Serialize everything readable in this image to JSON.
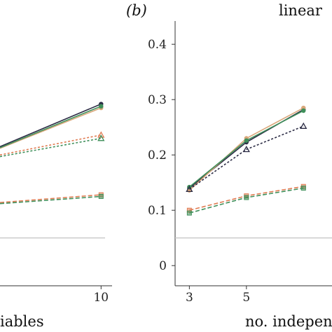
{
  "colors": {
    "dark": "#2b2b44",
    "green": "#3f8f5a",
    "orange": "#e07b52",
    "tan": "#d9a77a",
    "axis": "#333333",
    "reference": "#c8c8c8"
  },
  "chart_data": [
    {
      "type": "line",
      "panel_label": "",
      "title": "",
      "xlabel": "iables",
      "ylabel": "",
      "x_ticks": [
        10
      ],
      "x_tick_labels": [
        "10"
      ],
      "xlim": [
        2.4,
        10.3
      ],
      "ylim": [
        -0.02,
        0.48
      ],
      "reference_line": 0.05,
      "grid": false,
      "series": [
        {
          "group": "solid-top",
          "color": "dark",
          "marker": "circle",
          "dash": "solid",
          "x": [
            2.4,
            10
          ],
          "y": [
            0.215,
            0.292
          ]
        },
        {
          "group": "solid-top",
          "color": "tan",
          "marker": "circle",
          "dash": "solid",
          "x": [
            2.4,
            10
          ],
          "y": [
            0.212,
            0.285
          ]
        },
        {
          "group": "solid-top",
          "color": "green",
          "marker": "circle",
          "dash": "solid",
          "x": [
            2.4,
            10
          ],
          "y": [
            0.213,
            0.288
          ]
        },
        {
          "group": "dotted-mid",
          "color": "orange",
          "marker": "triangle",
          "dash": "dotted",
          "x": [
            2.4,
            10
          ],
          "y": [
            0.2,
            0.236
          ]
        },
        {
          "group": "dotted-mid",
          "color": "green",
          "marker": "triangle",
          "dash": "dotted",
          "x": [
            2.4,
            10
          ],
          "y": [
            0.197,
            0.23
          ]
        },
        {
          "group": "dashed-low",
          "color": "orange",
          "marker": "square",
          "dash": "dashed",
          "x": [
            2.4,
            10
          ],
          "y": [
            0.114,
            0.128
          ]
        },
        {
          "group": "dashed-low",
          "color": "green",
          "marker": "square",
          "dash": "dashed",
          "x": [
            2.4,
            10
          ],
          "y": [
            0.112,
            0.125
          ]
        }
      ]
    },
    {
      "type": "line",
      "panel_label": "(b)",
      "title": "linear",
      "xlabel": "no. indepen",
      "ylabel": "",
      "x_ticks": [
        3,
        5
      ],
      "x_tick_labels": [
        "3",
        "5"
      ],
      "y_ticks": [
        0,
        0.1,
        0.2,
        0.3,
        0.4
      ],
      "y_tick_labels": [
        "0",
        "0.1",
        "0.2",
        "0.3",
        "0.4"
      ],
      "xlim": [
        2.5,
        8
      ],
      "ylim": [
        -0.02,
        0.48
      ],
      "reference_line": 0.05,
      "grid": false,
      "series": [
        {
          "group": "solid-top",
          "color": "dark",
          "marker": "circle",
          "dash": "solid",
          "x": [
            3,
            5,
            7
          ],
          "y": [
            0.14,
            0.223,
            0.282
          ]
        },
        {
          "group": "solid-top",
          "color": "tan",
          "marker": "circle",
          "dash": "solid",
          "x": [
            3,
            5,
            7
          ],
          "y": [
            0.136,
            0.23,
            0.285
          ]
        },
        {
          "group": "solid-top",
          "color": "green",
          "marker": "circle",
          "dash": "solid",
          "x": [
            3,
            5,
            7
          ],
          "y": [
            0.142,
            0.226,
            0.28
          ]
        },
        {
          "group": "dotted-mid",
          "color": "dark",
          "marker": "triangle",
          "dash": "dotted",
          "x": [
            3,
            5,
            7
          ],
          "y": [
            0.138,
            0.21,
            0.252
          ]
        },
        {
          "group": "dashed-low",
          "color": "orange",
          "marker": "square",
          "dash": "dashed",
          "x": [
            3,
            5,
            7
          ],
          "y": [
            0.1,
            0.126,
            0.143
          ]
        },
        {
          "group": "dashed-low",
          "color": "green",
          "marker": "square",
          "dash": "dashed",
          "x": [
            3,
            5,
            7
          ],
          "y": [
            0.095,
            0.123,
            0.14
          ]
        }
      ]
    }
  ]
}
